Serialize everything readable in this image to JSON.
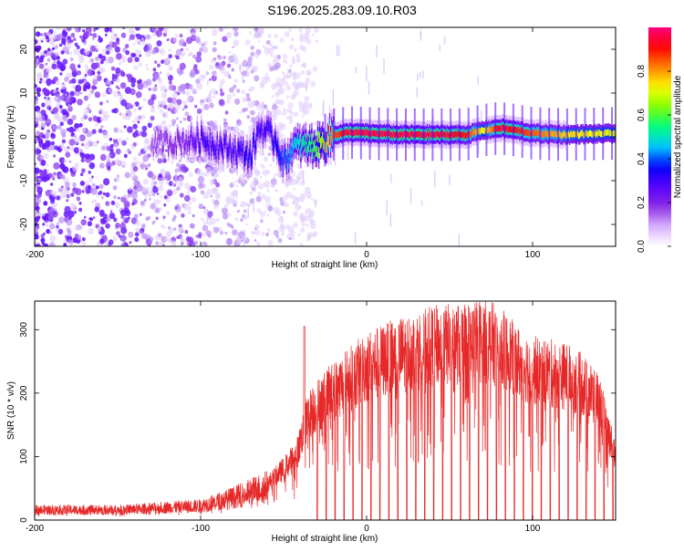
{
  "title": "S196.2025.283.09.10.R03",
  "colors": {
    "line": "#e62828",
    "frame": "#000000",
    "background": "#ffffff",
    "colormap": [
      "#ffffff",
      "#d9b3ff",
      "#8a2be2",
      "#5a00ff",
      "#0000ff",
      "#00c8ff",
      "#00ff80",
      "#80ff00",
      "#ffff00",
      "#ff8000",
      "#ff0000",
      "#ff0080"
    ]
  },
  "chart_data": [
    {
      "type": "heatmap",
      "name": "spectrogram",
      "title": "S196.2025.283.09.10.R03",
      "xlabel": "Height of straight line (km)",
      "ylabel": "Frequency (Hz)",
      "xlim": [
        -200,
        150
      ],
      "ylim": [
        -25,
        25
      ],
      "xticks": [
        -200,
        -100,
        0,
        100
      ],
      "yticks": [
        -20,
        -10,
        0,
        10,
        20
      ],
      "colorbar": {
        "label": "Normalized spectral amplitude",
        "range": [
          0,
          1
        ],
        "ticks": [
          "0.0",
          "0.2",
          "0.4",
          "0.6",
          "0.8"
        ],
        "tick_values": [
          0.0,
          0.2,
          0.4,
          0.6,
          0.8
        ]
      },
      "ridge": {
        "x": [
          -130,
          -110,
          -100,
          -90,
          -80,
          -70,
          -65,
          -60,
          -55,
          -50,
          -45,
          -40,
          -30,
          -20,
          -10,
          0,
          20,
          40,
          60,
          70,
          80,
          90,
          100,
          120,
          150
        ],
        "y": [
          -1.5,
          -1.0,
          -0.5,
          -2.0,
          -3.0,
          -4.5,
          2.0,
          1.0,
          -1.0,
          -6.0,
          -2.5,
          -2.0,
          -2.0,
          0.5,
          1.0,
          0.8,
          0.5,
          0.5,
          0.5,
          1.5,
          2.0,
          1.5,
          0.8,
          0.5,
          0.8
        ],
        "amplitude": [
          0.15,
          0.2,
          0.3,
          0.3,
          0.3,
          0.35,
          0.3,
          0.3,
          0.35,
          0.4,
          0.45,
          0.5,
          0.6,
          0.85,
          0.95,
          0.95,
          0.95,
          0.95,
          0.9,
          0.7,
          0.95,
          0.9,
          0.85,
          0.75,
          0.7
        ]
      },
      "noise_region_x": [
        -200,
        -30
      ]
    },
    {
      "type": "line",
      "name": "snr",
      "xlabel": "Height of straight line (km)",
      "ylabel": "SNR (10 * v/v)",
      "xlim": [
        -200,
        150
      ],
      "ylim": [
        0,
        345
      ],
      "xticks": [
        -200,
        -100,
        0,
        100
      ],
      "yticks": [
        0,
        100,
        200,
        300
      ],
      "envelope": {
        "x": [
          -200,
          -150,
          -100,
          -80,
          -60,
          -50,
          -42,
          -38,
          -35,
          -30,
          -20,
          -10,
          0,
          20,
          40,
          60,
          70,
          80,
          90,
          100,
          110,
          120,
          130,
          140,
          145,
          150
        ],
        "y": [
          18,
          18,
          25,
          40,
          60,
          85,
          110,
          150,
          175,
          190,
          215,
          235,
          255,
          275,
          290,
          295,
          300,
          290,
          265,
          250,
          245,
          240,
          225,
          200,
          150,
          110
        ]
      },
      "spike_x": -37.5,
      "spike_y": 305,
      "dropout_start_x": -30,
      "dropout_spacing": 5.4
    }
  ]
}
